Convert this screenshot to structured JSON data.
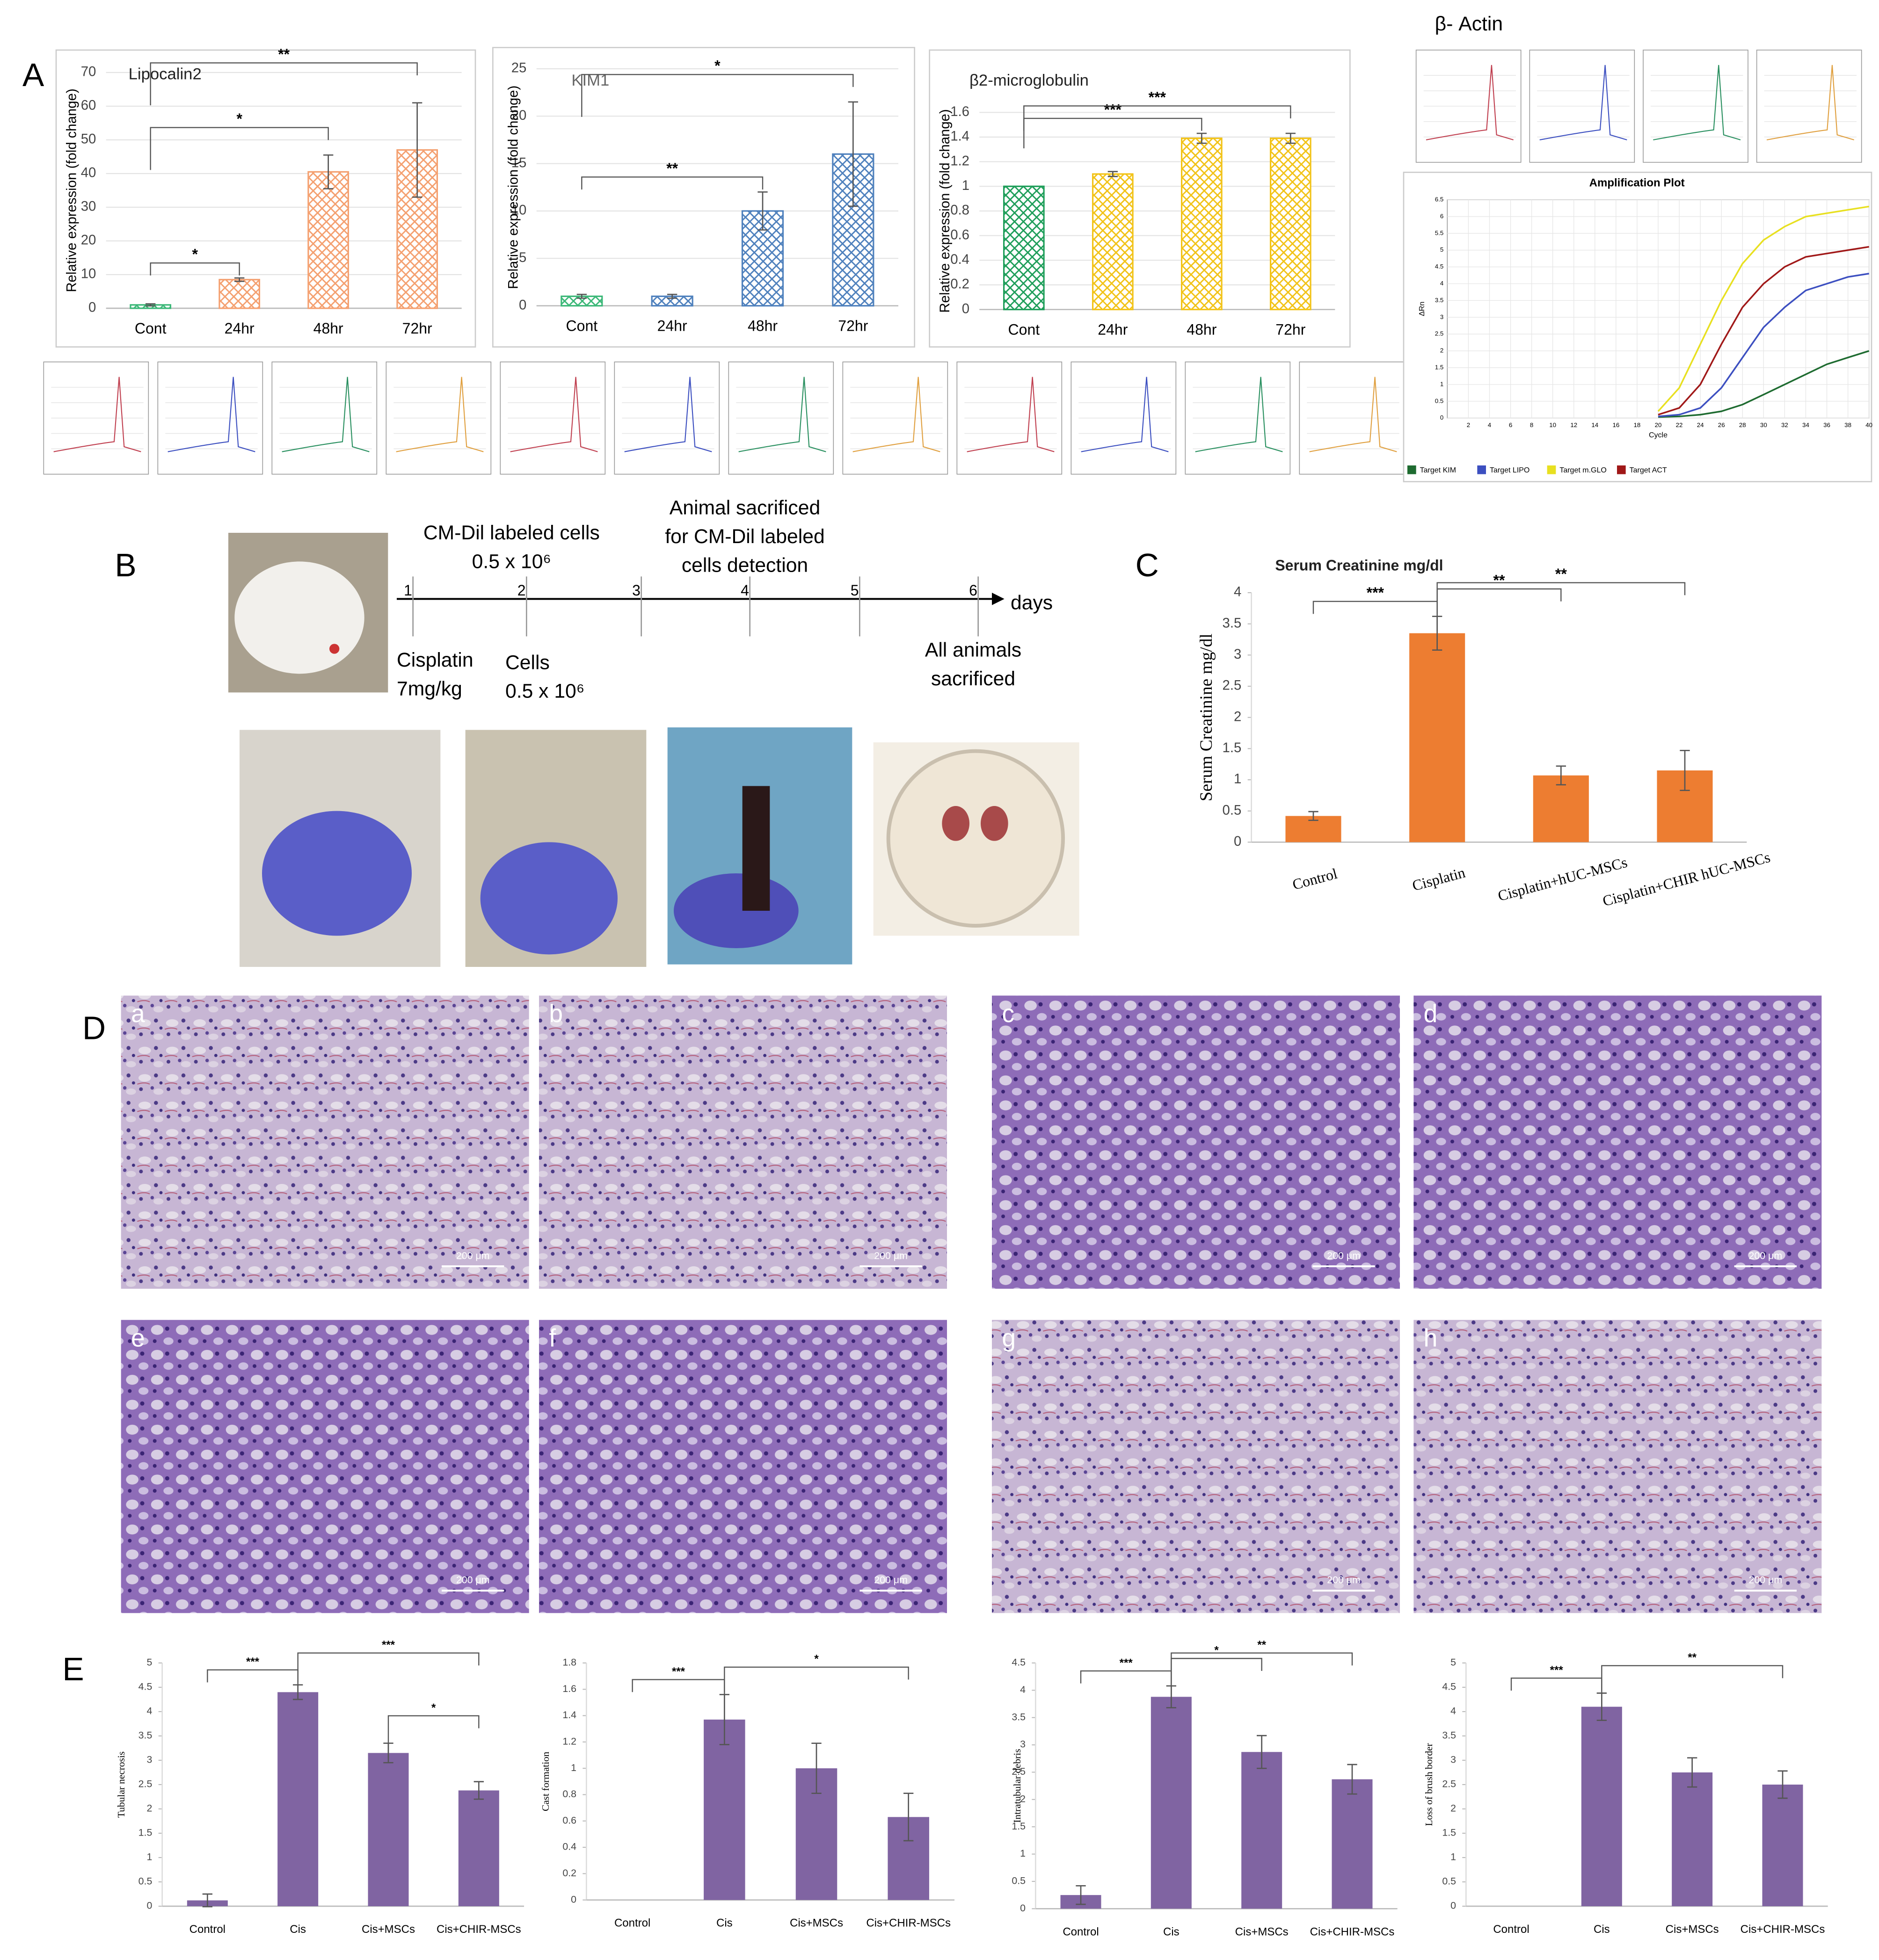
{
  "panel_labels": [
    "A",
    "B",
    "C",
    "D",
    "E"
  ],
  "chart_data": [
    {
      "type": "bar",
      "title": "Lipocalin2",
      "y_label": "Relative expression (fold change)",
      "categories": [
        "Cont",
        "24hr",
        "48hr",
        "72hr"
      ],
      "values": [
        1,
        8.5,
        40.5,
        47
      ],
      "errors": [
        0.3,
        0.5,
        5,
        14
      ],
      "colors": [
        "#3cb878",
        "#f4a070",
        "#f4a070",
        "#f4a070"
      ],
      "fill_style": "checkered",
      "ylim": [
        0,
        70
      ],
      "yticks": [
        0,
        10,
        20,
        30,
        40,
        50,
        60,
        70
      ],
      "grid": true,
      "annotations": [
        {
          "text": "*",
          "between": [
            "Cont",
            "24hr"
          ]
        },
        {
          "text": "*",
          "between": [
            "Cont",
            "48hr"
          ]
        },
        {
          "text": "**",
          "between": [
            "Cont",
            "72hr"
          ]
        }
      ]
    },
    {
      "type": "bar",
      "title": "KIM1",
      "y_label": "Relative expression (fold change)",
      "categories": [
        "Cont",
        "24hr",
        "48hr",
        "72hr"
      ],
      "values": [
        1,
        1,
        10,
        16
      ],
      "errors": [
        0.2,
        0.2,
        2,
        5.5
      ],
      "colors": [
        "#3cb878",
        "#4f81bd",
        "#4f81bd",
        "#4f81bd"
      ],
      "fill_style": "checkered",
      "ylim": [
        0,
        25
      ],
      "yticks": [
        0,
        5,
        10,
        15,
        20,
        25
      ],
      "grid": true,
      "annotations": [
        {
          "text": "**",
          "between": [
            "Cont",
            "48hr"
          ]
        },
        {
          "text": "*",
          "between": [
            "Cont",
            "72hr"
          ]
        }
      ]
    },
    {
      "type": "bar",
      "title": "β2-microglobulin",
      "y_label": "Relative expression (fold change)",
      "categories": [
        "Cont",
        "24hr",
        "48hr",
        "72hr"
      ],
      "values": [
        1,
        1.1,
        1.39,
        1.39
      ],
      "errors": [
        0,
        0.02,
        0.04,
        0.04
      ],
      "colors": [
        "#1f9e5a",
        "#f2c318",
        "#f2c318",
        "#f2c318"
      ],
      "fill_style": "checkered",
      "ylim": [
        0,
        1.6
      ],
      "yticks": [
        0,
        0.2,
        0.4,
        0.6,
        0.8,
        1,
        1.2,
        1.4,
        1.6
      ],
      "grid": true,
      "annotations": [
        {
          "text": "***",
          "between": [
            "Cont",
            "48hr"
          ]
        },
        {
          "text": "***",
          "between": [
            "Cont",
            "72hr"
          ]
        }
      ]
    },
    {
      "type": "bar",
      "title": "Serum Creatinine mg/dl",
      "y_label": "Serum Creatinine mg/dl",
      "categories": [
        "Control",
        "Cisplatin",
        "Cisplatin+hUC-MSCs",
        "Cisplatin+CHIR hUC-MSCs"
      ],
      "values": [
        0.42,
        3.35,
        1.07,
        1.15
      ],
      "errors": [
        0.07,
        0.27,
        0.15,
        0.32
      ],
      "colors": [
        "#ed7d31",
        "#ed7d31",
        "#ed7d31",
        "#ed7d31"
      ],
      "fill_style": "solid",
      "ylim": [
        0,
        4
      ],
      "yticks": [
        0,
        0.5,
        1,
        1.5,
        2,
        2.5,
        3,
        3.5,
        4
      ],
      "grid": false,
      "annotations": [
        {
          "text": "***",
          "between": [
            "Control",
            "Cisplatin"
          ]
        },
        {
          "text": "**",
          "between": [
            "Cisplatin",
            "Cisplatin+hUC-MSCs"
          ]
        },
        {
          "text": "**",
          "between": [
            "Cisplatin",
            "Cisplatin+CHIR hUC-MSCs"
          ]
        }
      ]
    },
    {
      "type": "line",
      "supertitle": "β- Actin",
      "title": "Amplification Plot",
      "x_label": "Cycle",
      "y_label": "ΔRn",
      "x": [
        20,
        22,
        24,
        26,
        28,
        30,
        32,
        34,
        36,
        38,
        40
      ],
      "series": [
        {
          "name": "Target KIM",
          "color": "#1e6b30",
          "values": [
            0.03,
            0.05,
            0.1,
            0.2,
            0.4,
            0.7,
            1.0,
            1.3,
            1.6,
            1.8,
            2.0
          ]
        },
        {
          "name": "Target LIPO",
          "color": "#3c4fc0",
          "values": [
            0.05,
            0.1,
            0.3,
            0.9,
            1.8,
            2.7,
            3.3,
            3.8,
            4.0,
            4.2,
            4.3
          ]
        },
        {
          "name": "Target m.GLO",
          "color": "#e8e020",
          "values": [
            0.2,
            0.9,
            2.2,
            3.5,
            4.6,
            5.3,
            5.7,
            6.0,
            6.1,
            6.2,
            6.3
          ]
        },
        {
          "name": "Target ACT",
          "color": "#a01818",
          "values": [
            0.1,
            0.3,
            1.0,
            2.2,
            3.3,
            4.0,
            4.5,
            4.8,
            4.9,
            5.0,
            5.1
          ]
        }
      ],
      "xlim": [
        0,
        40
      ],
      "xticks": [
        2,
        4,
        6,
        8,
        10,
        12,
        14,
        16,
        18,
        20,
        22,
        24,
        26,
        28,
        30,
        32,
        34,
        36,
        38,
        40
      ],
      "ylim": [
        0,
        6.5
      ],
      "yticks": [
        0,
        0.5,
        1,
        1.5,
        2,
        2.5,
        3,
        3.5,
        4,
        4.5,
        5,
        5.5,
        6,
        6.5
      ],
      "grid": true
    },
    {
      "type": "bar",
      "y_label": "Tubular necrosis",
      "categories": [
        "Control",
        "Cis",
        "Cis+MSCs",
        "Cis+CHIR-MSCs"
      ],
      "values": [
        0.12,
        4.4,
        3.15,
        2.38
      ],
      "errors": [
        0.13,
        0.15,
        0.2,
        0.18
      ],
      "colors": [
        "#8064a2",
        "#8064a2",
        "#8064a2",
        "#8064a2"
      ],
      "fill_style": "solid",
      "ylim": [
        0,
        5
      ],
      "yticks": [
        0,
        0.5,
        1,
        1.5,
        2,
        2.5,
        3,
        3.5,
        4,
        4.5,
        5
      ],
      "grid": false,
      "annotations": [
        {
          "text": "***",
          "between": [
            "Control",
            "Cis"
          ]
        },
        {
          "text": "*",
          "between": [
            "Cis+MSCs",
            "Cis+CHIR-MSCs"
          ]
        },
        {
          "text": "***",
          "between": [
            "Cis",
            "Cis+CHIR-MSCs"
          ]
        }
      ]
    },
    {
      "type": "bar",
      "y_label": "Cast formation",
      "categories": [
        "Control",
        "Cis",
        "Cis+MSCs",
        "Cis+CHIR-MSCs"
      ],
      "values": [
        0,
        1.37,
        1.0,
        0.63
      ],
      "errors": [
        0,
        0.19,
        0.19,
        0.18
      ],
      "colors": [
        "#8064a2",
        "#8064a2",
        "#8064a2",
        "#8064a2"
      ],
      "fill_style": "solid",
      "ylim": [
        0,
        1.8
      ],
      "yticks": [
        0,
        0.2,
        0.4,
        0.6,
        0.8,
        1,
        1.2,
        1.4,
        1.6,
        1.8
      ],
      "grid": false,
      "annotations": [
        {
          "text": "***",
          "between": [
            "Control",
            "Cis"
          ]
        },
        {
          "text": "*",
          "between": [
            "Cis",
            "Cis+CHIR-MSCs"
          ]
        }
      ]
    },
    {
      "type": "bar",
      "y_label": "Intratubular debris",
      "categories": [
        "Control",
        "Cis",
        "Cis+MSCs",
        "Cis+CHIR-MSCs"
      ],
      "values": [
        0.25,
        3.88,
        2.87,
        2.37
      ],
      "errors": [
        0.17,
        0.2,
        0.3,
        0.27
      ],
      "colors": [
        "#8064a2",
        "#8064a2",
        "#8064a2",
        "#8064a2"
      ],
      "fill_style": "solid",
      "ylim": [
        0,
        4.5
      ],
      "yticks": [
        0,
        0.5,
        1,
        1.5,
        2,
        2.5,
        3,
        3.5,
        4,
        4.5
      ],
      "grid": false,
      "annotations": [
        {
          "text": "***",
          "between": [
            "Control",
            "Cis"
          ]
        },
        {
          "text": "*",
          "between": [
            "Cis",
            "Cis+MSCs"
          ]
        },
        {
          "text": "**",
          "between": [
            "Cis",
            "Cis+CHIR-MSCs"
          ]
        }
      ]
    },
    {
      "type": "bar",
      "y_label": "Loss of brush border",
      "categories": [
        "Control",
        "Cis",
        "Cis+MSCs",
        "Cis+CHIR-MSCs"
      ],
      "values": [
        0,
        4.1,
        2.75,
        2.5
      ],
      "errors": [
        0,
        0.28,
        0.3,
        0.28
      ],
      "colors": [
        "#8064a2",
        "#8064a2",
        "#8064a2",
        "#8064a2"
      ],
      "fill_style": "solid",
      "ylim": [
        0,
        5
      ],
      "yticks": [
        0,
        0.5,
        1,
        1.5,
        2,
        2.5,
        3,
        3.5,
        4,
        4.5,
        5
      ],
      "grid": false,
      "annotations": [
        {
          "text": "***",
          "between": [
            "Control",
            "Cis"
          ]
        },
        {
          "text": "**",
          "between": [
            "Cis",
            "Cis+CHIR-MSCs"
          ]
        }
      ]
    }
  ],
  "timeline": {
    "days": [
      1,
      2,
      3,
      4,
      5,
      6
    ],
    "unit": "days",
    "above": [
      [
        "CM-Dil labeled cells",
        "0.5 x 10⁶"
      ],
      [
        "Animal sacrificed",
        "for CM-Dil labeled",
        "cells detection"
      ]
    ],
    "below": [
      [
        "Cisplatin",
        "7mg/kg"
      ],
      [
        "Cells",
        "0.5 x 10⁶"
      ],
      [
        "All animals",
        "sacrificed"
      ]
    ]
  },
  "histology": {
    "panels": [
      "a",
      "b",
      "c",
      "d",
      "e",
      "f",
      "g",
      "h"
    ],
    "scale_bar": "200 μm"
  }
}
